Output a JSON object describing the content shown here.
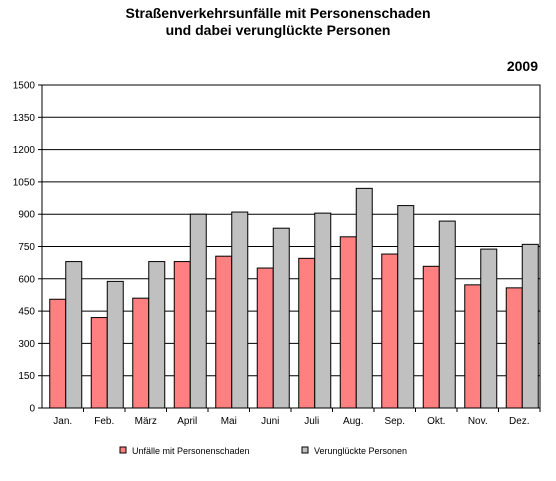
{
  "chart_data": {
    "type": "bar",
    "title_line1": "Straßenverkehrsunfälle mit Personenschaden",
    "title_line2": "und dabei verunglückte Personen",
    "year_label": "2009",
    "categories": [
      "Jan.",
      "Feb.",
      "März",
      "April",
      "Mai",
      "Juni",
      "Juli",
      "Aug.",
      "Sep.",
      "Okt.",
      "Nov.",
      "Dez."
    ],
    "series": [
      {
        "name": "Unfälle mit Personenschaden",
        "color": "#ff8080",
        "values": [
          505,
          420,
          510,
          680,
          705,
          650,
          695,
          795,
          715,
          658,
          572,
          558
        ]
      },
      {
        "name": "Verunglückte Personen",
        "color": "#c0c0c0",
        "values": [
          680,
          588,
          680,
          900,
          910,
          835,
          905,
          1020,
          940,
          868,
          738,
          760
        ]
      }
    ],
    "ylim": [
      0,
      1500
    ],
    "yticks": [
      0,
      150,
      300,
      450,
      600,
      750,
      900,
      1050,
      1200,
      1350,
      1500
    ],
    "grid": true,
    "legend_position": "bottom"
  }
}
